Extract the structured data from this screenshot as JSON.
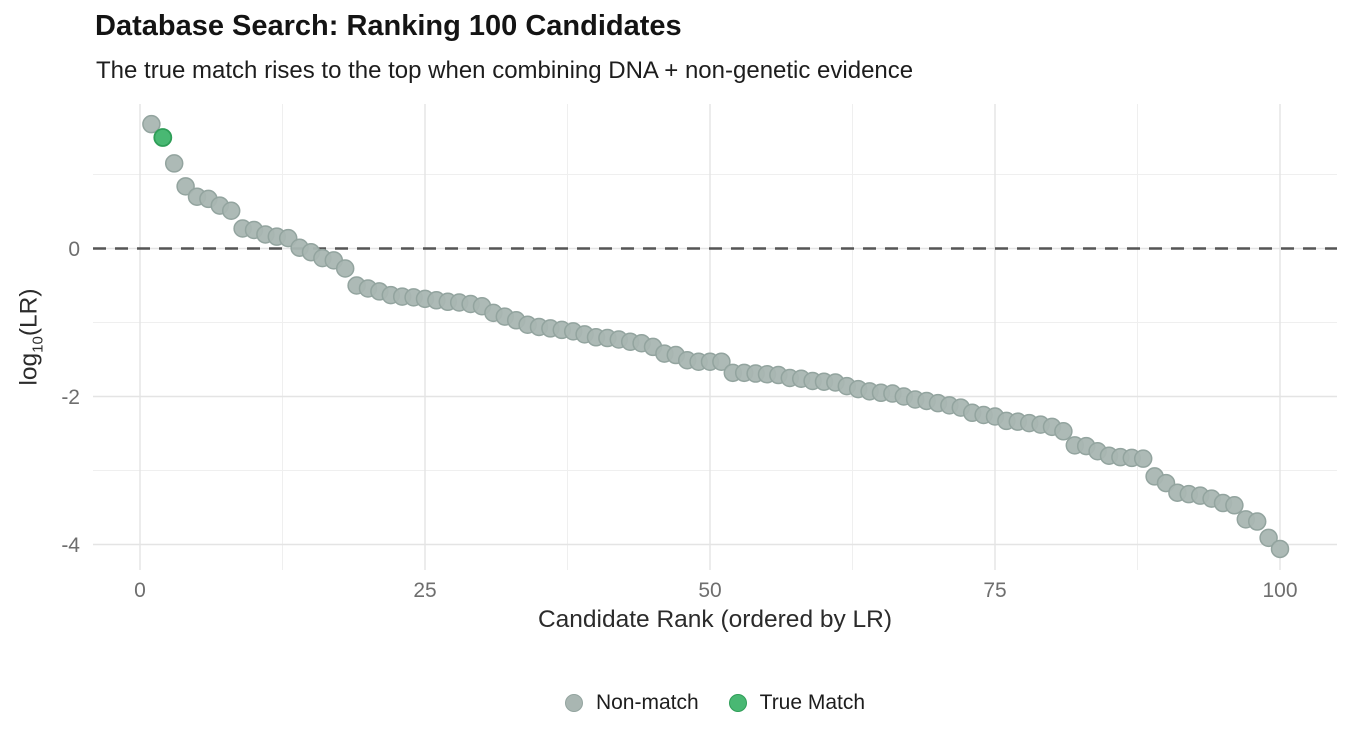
{
  "header": {
    "title": "Database Search: Ranking 100 Candidates",
    "subtitle": "The true match rises to the top when combining DNA + non-genetic evidence"
  },
  "chart_data": {
    "type": "scatter",
    "title": "Database Search: Ranking 100 Candidates",
    "subtitle": "The true match rises to the top when combining DNA + non-genetic evidence",
    "x_axis": {
      "label": "Candidate Rank (ordered by LR)",
      "ticks": [
        0,
        25,
        50,
        75,
        100
      ],
      "minor_ticks": [
        12.5,
        37.5,
        62.5,
        87.5
      ],
      "range": [
        -3.5,
        105
      ]
    },
    "y_axis": {
      "label": "log10(LR)",
      "label_parts": {
        "pre": "log",
        "sub": "10",
        "post": "(LR)"
      },
      "ticks": [
        0,
        -2,
        -4
      ],
      "minor_ticks": [
        1,
        -1,
        -3
      ],
      "range": [
        -4.4,
        1.95
      ]
    },
    "reference_line_y": 0,
    "grid": true,
    "legend_position": "bottom-center",
    "legend": [
      {
        "label": "Non-match",
        "fill": "#a9b6b2",
        "stroke": "#93a49f"
      },
      {
        "label": "True Match",
        "fill": "#49b873",
        "stroke": "#2f9e58"
      }
    ],
    "true_match_rank": 2,
    "ranks_start_at": 1,
    "log10_lr": [
      1.68,
      1.5,
      1.15,
      0.84,
      0.7,
      0.67,
      0.58,
      0.51,
      0.27,
      0.25,
      0.19,
      0.16,
      0.14,
      0.01,
      -0.05,
      -0.13,
      -0.16,
      -0.27,
      -0.5,
      -0.54,
      -0.58,
      -0.63,
      -0.65,
      -0.66,
      -0.68,
      -0.7,
      -0.72,
      -0.73,
      -0.75,
      -0.78,
      -0.87,
      -0.92,
      -0.97,
      -1.03,
      -1.06,
      -1.08,
      -1.1,
      -1.12,
      -1.16,
      -1.2,
      -1.21,
      -1.23,
      -1.26,
      -1.28,
      -1.33,
      -1.42,
      -1.44,
      -1.51,
      -1.53,
      -1.53,
      -1.53,
      -1.68,
      -1.68,
      -1.69,
      -1.7,
      -1.71,
      -1.75,
      -1.76,
      -1.79,
      -1.8,
      -1.81,
      -1.86,
      -1.9,
      -1.93,
      -1.95,
      -1.96,
      -2.0,
      -2.04,
      -2.06,
      -2.09,
      -2.12,
      -2.15,
      -2.22,
      -2.25,
      -2.27,
      -2.33,
      -2.34,
      -2.36,
      -2.38,
      -2.41,
      -2.47,
      -2.66,
      -2.67,
      -2.74,
      -2.8,
      -2.82,
      -2.83,
      -2.84,
      -3.08,
      -3.17,
      -3.3,
      -3.32,
      -3.34,
      -3.38,
      -3.44,
      -3.47,
      -3.66,
      -3.69,
      -3.91,
      -4.06
    ],
    "colors": {
      "non_match_fill": "#a9b6b2",
      "non_match_stroke": "#93a49f",
      "true_match_fill": "#49b873",
      "true_match_stroke": "#2f9e58",
      "reference_line": "#555555",
      "grid_major": "#e4e4e4",
      "grid_minor": "#efefef",
      "tick_label": "#6e6e6e"
    }
  }
}
